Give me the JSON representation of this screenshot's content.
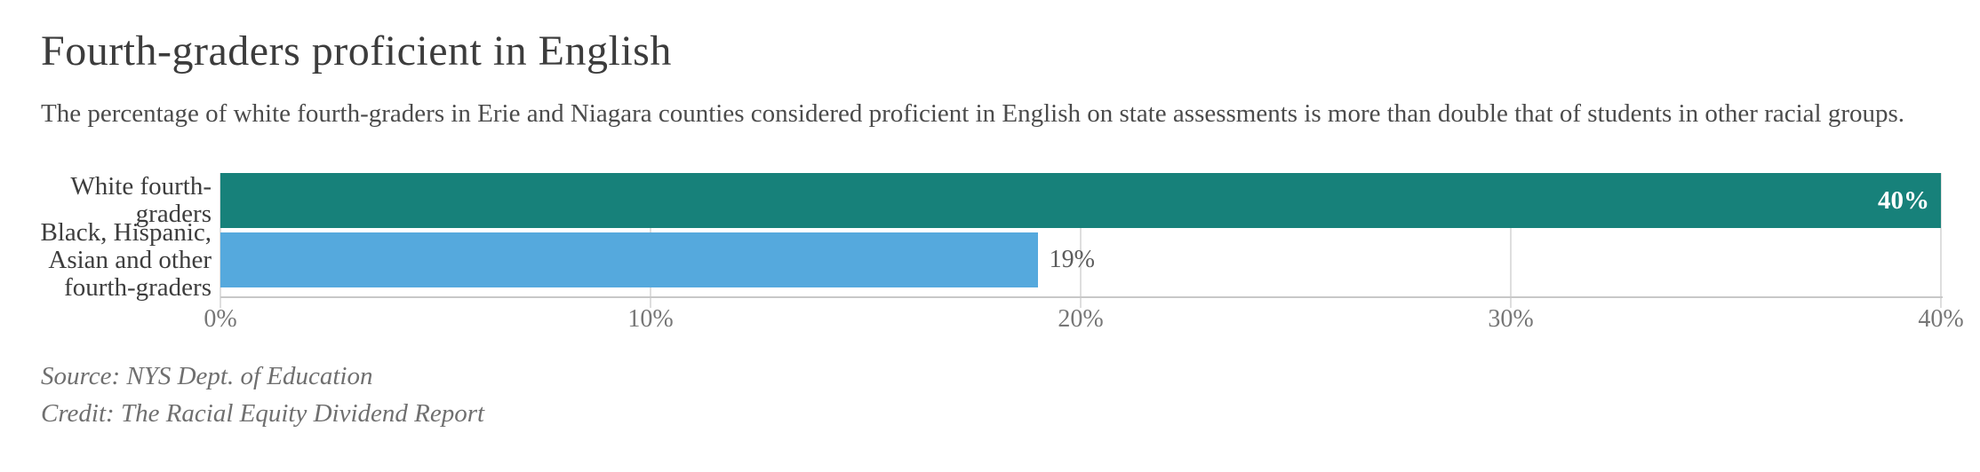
{
  "header": {
    "title": "Fourth-graders proficient in English",
    "subtitle": "The percentage of white fourth-graders in Erie and Niagara counties considered proficient in English on state assessments is more than double that of students in other racial groups."
  },
  "chart_data": {
    "type": "bar",
    "orientation": "horizontal",
    "title": "Fourth-graders proficient in English",
    "categories": [
      "White fourth-graders",
      "Black, Hispanic, Asian and other fourth-graders"
    ],
    "values": [
      40,
      19
    ],
    "xlabel": "",
    "ylabel": "",
    "xlim": [
      0,
      40
    ],
    "grid": true,
    "x_ticks": [
      {
        "value": 0,
        "label": "0%"
      },
      {
        "value": 10,
        "label": "10%"
      },
      {
        "value": 20,
        "label": "20%"
      },
      {
        "value": 30,
        "label": "30%"
      },
      {
        "value": 40,
        "label": "40%"
      }
    ],
    "rows": [
      {
        "label_lines": [
          "White fourth-",
          "graders"
        ],
        "value": 40,
        "value_label": "40%",
        "color": "#17817A",
        "value_label_inside": true
      },
      {
        "label_lines": [
          "Black, Hispanic,",
          "Asian and other",
          "fourth-graders"
        ],
        "value": 19,
        "value_label": "19%",
        "color": "#55A9DD",
        "value_label_inside": false
      }
    ]
  },
  "footer": {
    "source": "Source: NYS Dept. of Education",
    "credit": "Credit: The Racial Equity Dividend Report"
  },
  "colors": {
    "bar_teal": "#17817A",
    "bar_blue": "#55A9DD",
    "gridline": "#DEDEDE",
    "axis_line": "#C8C8C8",
    "tick_text": "#767676",
    "title_text": "#3C3C3C",
    "subtitle_text": "#4B4B4B",
    "muted_text": "#6F6F6F"
  }
}
